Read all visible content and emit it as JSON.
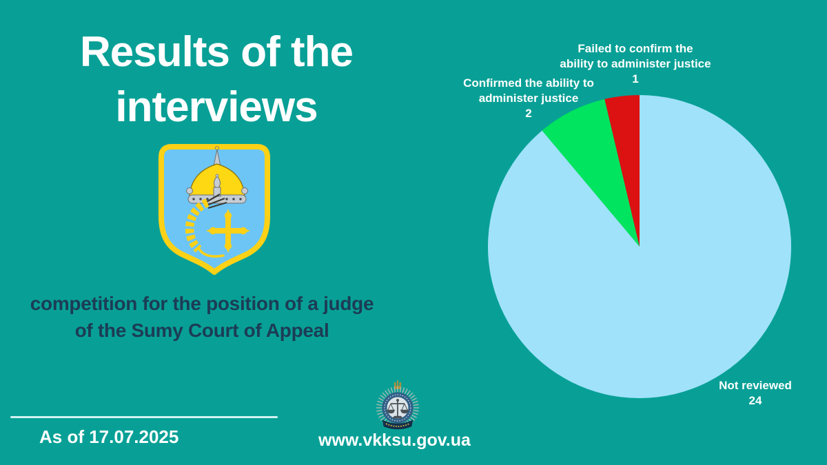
{
  "page": {
    "background_color": "#08a096"
  },
  "header": {
    "title": "Results of the\ninterviews"
  },
  "subtitle": {
    "text": "competition for the position of a judge\nof the Sumy Court of Appeal"
  },
  "footer": {
    "as_of": "As of 17.07.2025",
    "website": "www.vkksu.gov.ua"
  },
  "icons": {
    "coat_of_arms": "sumy-oblast-coat-of-arms",
    "badge": "vkksu-judicial-emblem"
  },
  "chart_data": {
    "type": "pie",
    "title": "",
    "total": 27,
    "start_angle_deg": 0,
    "direction": "clockwise",
    "grid": false,
    "legend_position": "labels-adjacent-to-slices",
    "slices": [
      {
        "label": "Not reviewed",
        "label_wrapped": "Not reviewed",
        "value": 24,
        "color": "#a0e2fa"
      },
      {
        "label": "Confirmed the ability to administer justice",
        "label_wrapped": "Confirmed the ability to\nadminister justice",
        "value": 2,
        "color": "#00e45f"
      },
      {
        "label": "Failed to confirm the ability to administer justice",
        "label_wrapped": "Failed to confirm the\nability to administer justice",
        "value": 1,
        "color": "#dc1111"
      }
    ]
  }
}
